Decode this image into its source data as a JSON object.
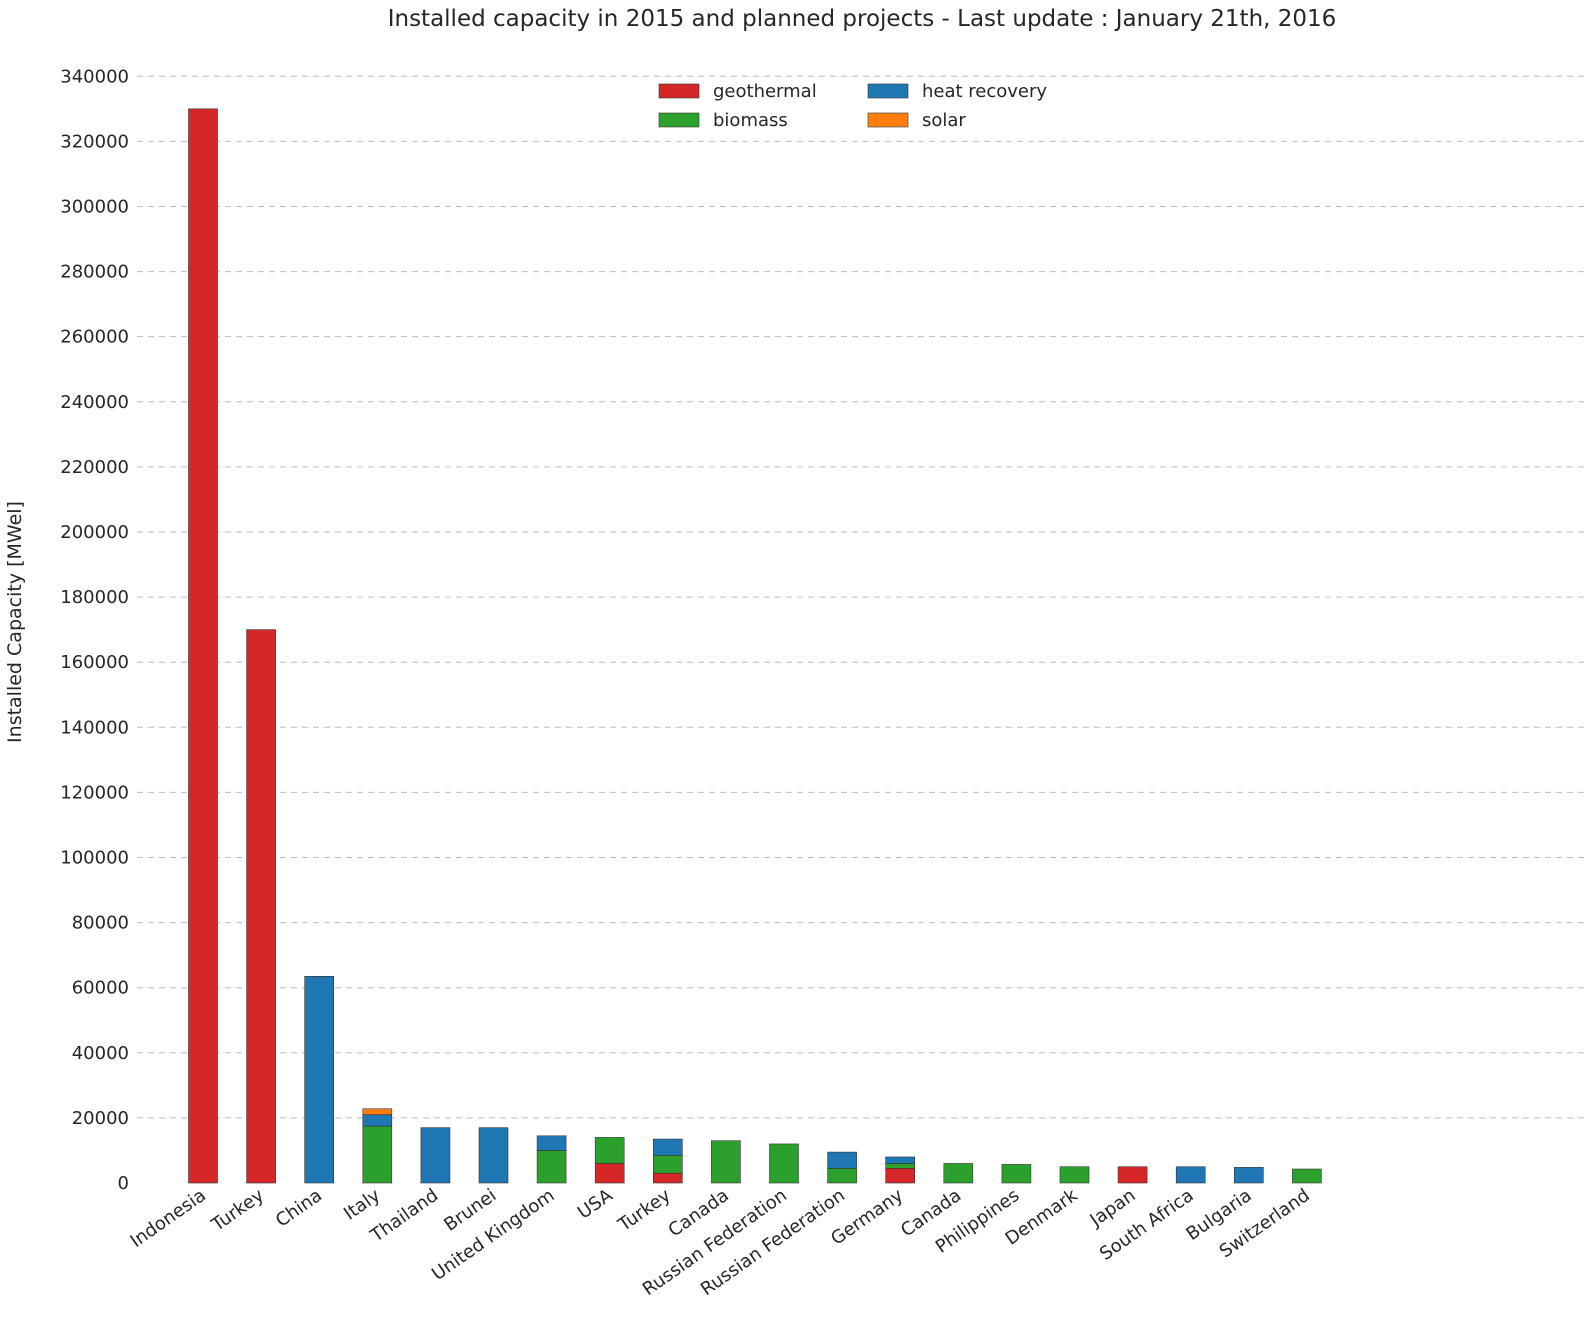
{
  "chart_data": {
    "type": "bar",
    "stacked": true,
    "title": "Installed capacity in 2015 and planned projects - Last update : January 21th, 2016",
    "xlabel": "",
    "ylabel": "Installed Capacity [MWel]",
    "ylim": [
      0,
      345000
    ],
    "yticks": [
      0,
      20000,
      40000,
      60000,
      80000,
      100000,
      120000,
      140000,
      160000,
      180000,
      200000,
      220000,
      240000,
      260000,
      280000,
      300000,
      320000,
      340000
    ],
    "grid": "y-dashed",
    "legend_position": "top-center",
    "categories": [
      "Indonesia",
      "Turkey",
      "China",
      "Italy",
      "Thailand",
      "Brunei",
      "United Kingdom",
      "USA",
      "Turkey",
      "Canada",
      "Russian Federation",
      "Russian Federation",
      "Germany",
      "Canada",
      "Philippines",
      "Denmark",
      "Japan",
      "South Africa",
      "Bulgaria",
      "Switzerland"
    ],
    "series": [
      {
        "name": "geothermal",
        "color": "#d62728",
        "values": [
          330000,
          170000,
          0,
          0,
          0,
          0,
          0,
          6000,
          3000,
          0,
          0,
          0,
          4500,
          0,
          0,
          0,
          5000,
          0,
          0,
          0
        ]
      },
      {
        "name": "biomass",
        "color": "#2ca02c",
        "values": [
          0,
          0,
          0,
          17500,
          0,
          0,
          10000,
          8000,
          5500,
          13000,
          12000,
          4500,
          1500,
          6000,
          5700,
          5000,
          0,
          0,
          0,
          4300
        ]
      },
      {
        "name": "heat recovery",
        "color": "#1f77b4",
        "values": [
          0,
          0,
          63500,
          3500,
          17000,
          17000,
          4500,
          0,
          5000,
          0,
          0,
          5000,
          2000,
          0,
          0,
          0,
          0,
          5000,
          4800,
          0
        ]
      },
      {
        "name": "solar",
        "color": "#ff7f0e",
        "values": [
          0,
          0,
          0,
          1800,
          0,
          0,
          0,
          0,
          0,
          0,
          0,
          0,
          0,
          0,
          0,
          0,
          0,
          0,
          0,
          0
        ]
      }
    ]
  }
}
